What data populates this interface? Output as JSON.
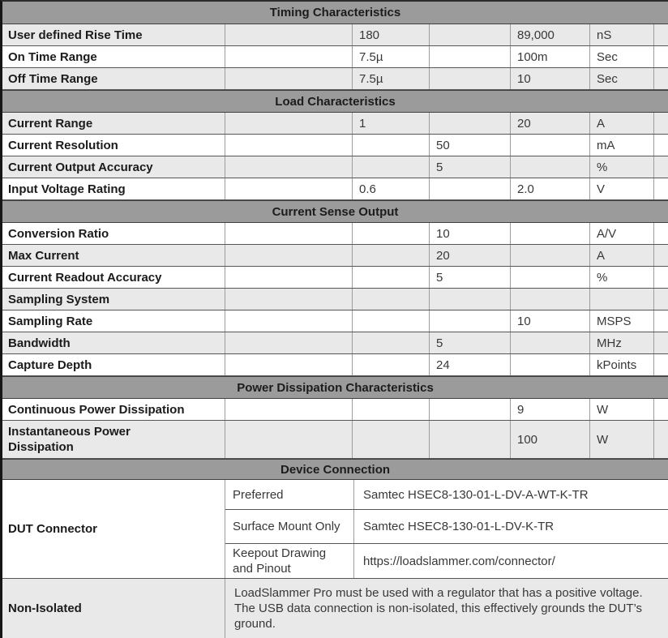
{
  "table": {
    "sections": [
      {
        "title": "Timing Characteristics",
        "rows": [
          {
            "name": "User defined Rise Time",
            "b": "180",
            "d": "89,000",
            "unit": "nS"
          },
          {
            "name": "On Time Range",
            "b": "7.5µ",
            "d": "100m",
            "unit": "Sec"
          },
          {
            "name": "Off Time Range",
            "b": "7.5µ",
            "d": "10",
            "unit": "Sec"
          }
        ]
      },
      {
        "title": "Load Characteristics",
        "rows": [
          {
            "name": "Current Range",
            "b": "1",
            "d": "20",
            "unit": "A"
          },
          {
            "name": "Current Resolution",
            "c": "50",
            "unit": "mA"
          },
          {
            "name": "Current Output Accuracy",
            "c": "5",
            "unit": "%"
          },
          {
            "name": "Input Voltage Rating",
            "b": "0.6",
            "d": "2.0",
            "unit": "V"
          }
        ]
      },
      {
        "title": "Current Sense Output",
        "rows": [
          {
            "name": "Conversion Ratio",
            "c": "10",
            "unit": "A/V"
          },
          {
            "name": "Max Current",
            "c": "20",
            "unit": "A"
          },
          {
            "name": "Current Readout Accuracy",
            "c": "5",
            "unit": "%"
          },
          {
            "name": "Sampling System"
          },
          {
            "name": "Sampling Rate",
            "d": "10",
            "unit": "MSPS"
          },
          {
            "name": "Bandwidth",
            "c": "5",
            "unit": "MHz"
          },
          {
            "name": "Capture Depth",
            "c": "24",
            "unit": "kPoints"
          }
        ]
      },
      {
        "title": "Power Dissipation Characteristics",
        "rows": [
          {
            "name": "Continuous Power Dissipation",
            "d": "9",
            "unit": "W"
          },
          {
            "name": "Instantaneous Power Dissipation",
            "d": "100",
            "unit": "W"
          }
        ]
      }
    ],
    "device": {
      "title": "Device Connection",
      "dut_name": "DUT Connector",
      "dut_rows": [
        {
          "label": "Preferred",
          "value": "Samtec HSEC8-130-01-L-DV-A-WT-K-TR"
        },
        {
          "label": "Surface Mount Only",
          "value": "Samtec HSEC8-130-01-L-DV-K-TR"
        },
        {
          "label": "Keepout Drawing and Pinout",
          "value": "https://loadslammer.com/connector/"
        }
      ],
      "non_isolated_name": "Non-Isolated",
      "non_isolated_text": "LoadSlammer Pro must be used with a regulator that has a positive voltage. The USB data connection is non-isolated, this effectively grounds the DUT’s ground."
    },
    "colors": {
      "header_bg": "#9b9b9b",
      "row_shade": "#e9e9e9",
      "row_white": "#ffffff",
      "border_dark": "#565656",
      "border_light": "#9e9e9e"
    }
  }
}
